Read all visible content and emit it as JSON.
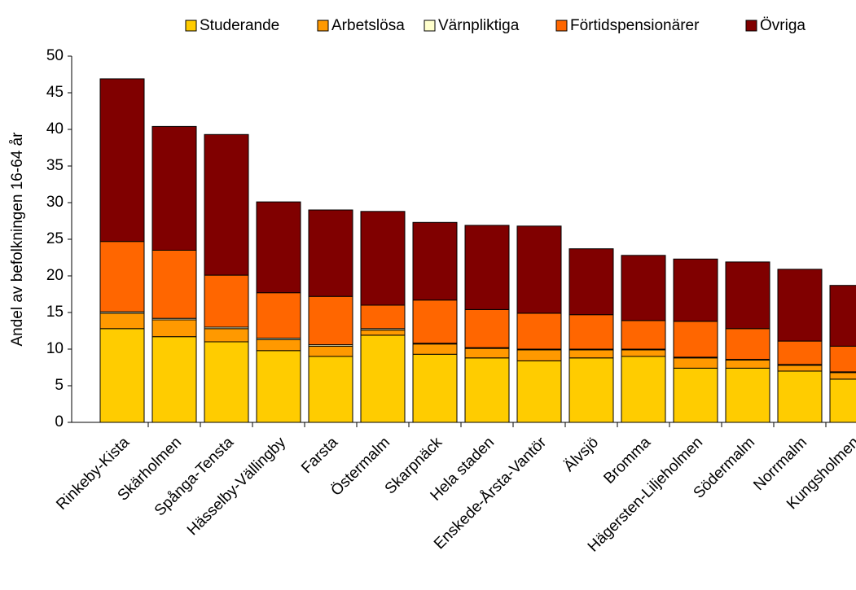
{
  "chart_data": {
    "type": "stacked_bar",
    "y_label": "Andel av befolkningen 16-64 år",
    "categories": [
      "Rinkeby-Kista",
      "Skärholmen",
      "Spånga-Tensta",
      "Hässelby-Vällingby",
      "Farsta",
      "Östermalm",
      "Skarpnäck",
      "Hela staden",
      "Enskede-Årsta-Vantör",
      "Älvsjö",
      "Bromma",
      "Hägersten-Liljeholmen",
      "Södermalm",
      "Norrmalm",
      "Kungsholmen"
    ],
    "series": [
      {
        "name": "Studerande",
        "color": "#FFCC00",
        "values": [
          12.8,
          11.7,
          11.0,
          9.8,
          9.0,
          11.9,
          9.3,
          8.8,
          8.4,
          8.8,
          9.0,
          7.4,
          7.4,
          7.0,
          5.9
        ]
      },
      {
        "name": "Arbetslösa",
        "color": "#FF9900",
        "values": [
          2.1,
          2.3,
          1.8,
          1.5,
          1.4,
          0.7,
          1.4,
          1.3,
          1.5,
          1.1,
          0.9,
          1.4,
          1.1,
          0.8,
          0.9
        ]
      },
      {
        "name": "Värnpliktiga",
        "color": "#FFFFCC",
        "values": [
          0.2,
          0.2,
          0.2,
          0.2,
          0.2,
          0.2,
          0.1,
          0.1,
          0.1,
          0.1,
          0.1,
          0.1,
          0.1,
          0.1,
          0.1
        ]
      },
      {
        "name": "Förtidspensionärer",
        "color": "#FF6600",
        "values": [
          9.6,
          9.3,
          7.1,
          6.2,
          6.6,
          3.2,
          5.9,
          5.2,
          4.9,
          4.7,
          3.9,
          4.9,
          4.2,
          3.2,
          3.5
        ]
      },
      {
        "name": "Övriga",
        "color": "#800000",
        "values": [
          22.2,
          16.9,
          19.2,
          12.4,
          11.8,
          12.8,
          10.6,
          11.5,
          11.9,
          9.0,
          8.9,
          8.5,
          9.1,
          9.8,
          8.3
        ]
      }
    ],
    "ylim": [
      0,
      50
    ],
    "yticks": [
      0,
      5,
      10,
      15,
      20,
      25,
      30,
      35,
      40,
      45,
      50
    ],
    "legend": "top"
  }
}
